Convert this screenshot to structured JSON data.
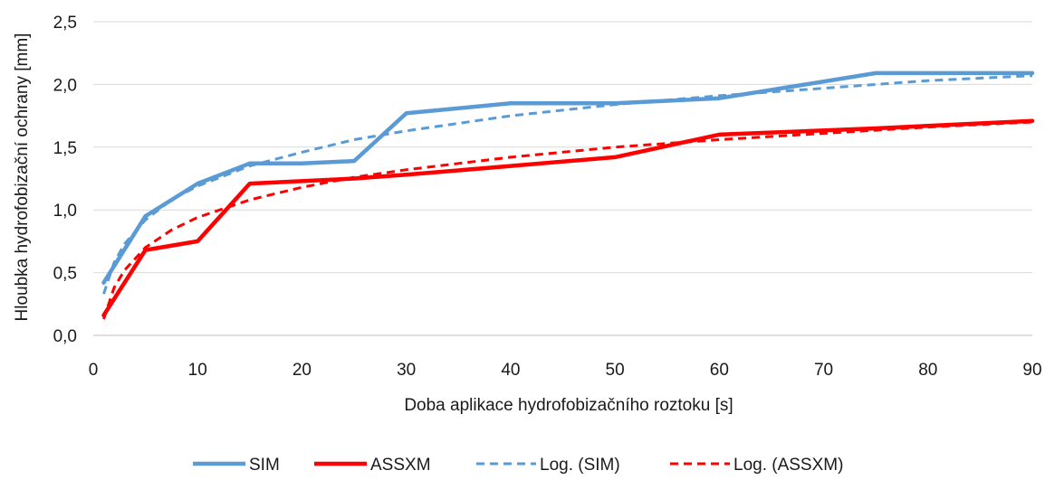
{
  "chart_data": {
    "type": "line",
    "xlabel": "Doba aplikace hydrofobizačního roztoku [s]",
    "ylabel": "Hloubka hydrofobizační ochrany [mm]",
    "xlim": [
      0,
      90
    ],
    "ylim": [
      0,
      2.5
    ],
    "x_ticks": [
      0,
      10,
      20,
      30,
      40,
      50,
      60,
      70,
      80,
      90
    ],
    "y_ticks": [
      "0,0",
      "0,5",
      "1,0",
      "1,5",
      "2,0",
      "2,5"
    ],
    "y_tick_values": [
      0,
      0.5,
      1.0,
      1.5,
      2.0,
      2.5
    ],
    "grid": "horizontal",
    "legend_position": "bottom",
    "series": [
      {
        "name": "SIM",
        "color": "#5b9bd5",
        "style": "solid",
        "x": [
          1,
          5,
          10,
          15,
          20,
          25,
          30,
          40,
          50,
          60,
          75,
          90
        ],
        "y": [
          0.42,
          0.95,
          1.21,
          1.37,
          1.37,
          1.39,
          1.77,
          1.85,
          1.85,
          1.89,
          2.09,
          2.09
        ]
      },
      {
        "name": "ASSXM",
        "color": "#ff0000",
        "style": "solid",
        "x": [
          1,
          5,
          10,
          15,
          25,
          30,
          40,
          50,
          60,
          75,
          90
        ],
        "y": [
          0.16,
          0.68,
          0.75,
          1.21,
          1.25,
          1.28,
          1.35,
          1.42,
          1.6,
          1.65,
          1.71
        ]
      },
      {
        "name": "Log. (SIM)",
        "color": "#5b9bd5",
        "style": "dashed",
        "x": [
          1,
          2,
          3,
          5,
          7.5,
          10,
          15,
          20,
          25,
          30,
          40,
          50,
          60,
          70,
          80,
          90
        ],
        "y": [
          0.33,
          0.58,
          0.73,
          0.92,
          1.08,
          1.19,
          1.35,
          1.46,
          1.56,
          1.63,
          1.75,
          1.84,
          1.91,
          1.97,
          2.03,
          2.07
        ]
      },
      {
        "name": "Log. (ASSXM)",
        "color": "#ff0000",
        "style": "dashed",
        "x": [
          1,
          2,
          3,
          5,
          7.5,
          10,
          15,
          20,
          25,
          30,
          40,
          50,
          60,
          70,
          80,
          90
        ],
        "y": [
          0.13,
          0.38,
          0.52,
          0.7,
          0.84,
          0.94,
          1.08,
          1.18,
          1.26,
          1.32,
          1.42,
          1.5,
          1.56,
          1.61,
          1.66,
          1.7
        ]
      }
    ]
  }
}
